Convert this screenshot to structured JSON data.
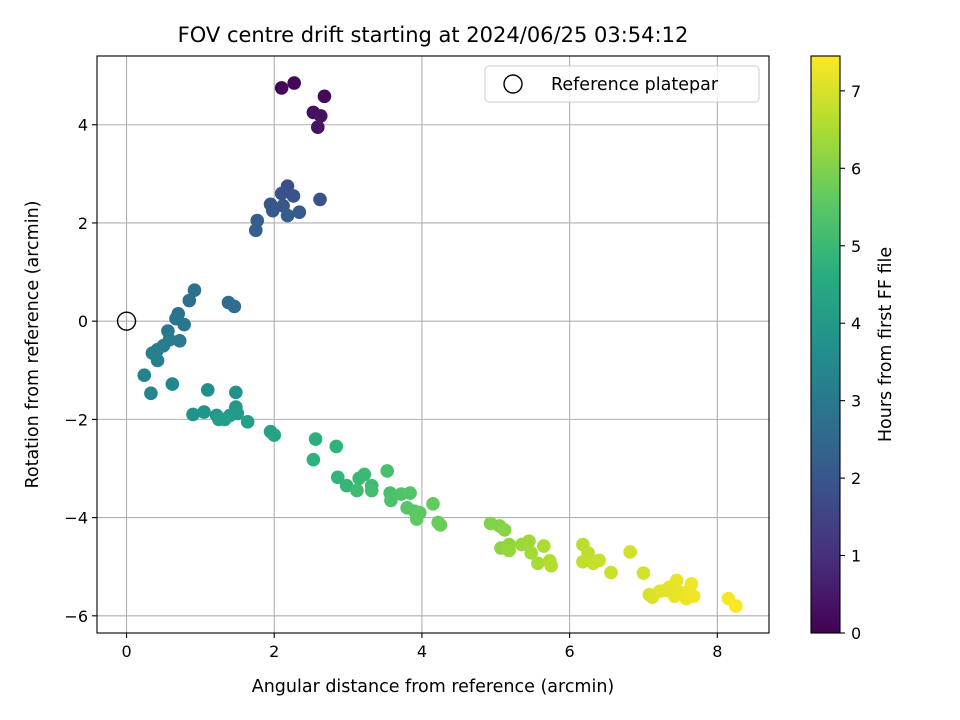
{
  "chart_data": {
    "type": "scatter",
    "title": "FOV centre drift starting at 2024/06/25 03:54:12",
    "xlabel": "Angular distance from reference (arcmin)",
    "ylabel": "Rotation from reference (arcmin)",
    "xlim": [
      -0.4,
      8.7
    ],
    "ylim": [
      -6.35,
      5.4
    ],
    "xticks": [
      0,
      2,
      4,
      6,
      8
    ],
    "yticks": [
      -6,
      -4,
      -2,
      0,
      2,
      4
    ],
    "grid": true,
    "legend": {
      "placement": "top-right",
      "entries": [
        "Reference platepar"
      ]
    },
    "reference_point": {
      "x": 0,
      "y": 0,
      "label": "Reference platepar"
    },
    "colorbar": {
      "label": "Hours from first FF file",
      "range": [
        0,
        7.45
      ],
      "ticks": [
        0,
        1,
        2,
        3,
        4,
        5,
        6,
        7
      ],
      "colormap": "viridis"
    },
    "points": [
      {
        "x": 2.1,
        "y": 4.75,
        "c": 0.05
      },
      {
        "x": 2.27,
        "y": 4.85,
        "c": 0.1
      },
      {
        "x": 2.68,
        "y": 4.58,
        "c": 0.2
      },
      {
        "x": 2.53,
        "y": 4.25,
        "c": 0.3
      },
      {
        "x": 2.63,
        "y": 4.18,
        "c": 0.35
      },
      {
        "x": 2.59,
        "y": 3.95,
        "c": 0.4
      },
      {
        "x": 2.18,
        "y": 2.75,
        "c": 1.75
      },
      {
        "x": 2.1,
        "y": 2.6,
        "c": 1.8
      },
      {
        "x": 2.26,
        "y": 2.55,
        "c": 1.85
      },
      {
        "x": 2.62,
        "y": 2.48,
        "c": 1.9
      },
      {
        "x": 1.95,
        "y": 2.38,
        "c": 1.95
      },
      {
        "x": 2.12,
        "y": 2.35,
        "c": 2.0
      },
      {
        "x": 1.98,
        "y": 2.25,
        "c": 2.05
      },
      {
        "x": 2.34,
        "y": 2.22,
        "c": 2.1
      },
      {
        "x": 2.18,
        "y": 2.15,
        "c": 2.15
      },
      {
        "x": 1.77,
        "y": 2.05,
        "c": 2.2
      },
      {
        "x": 1.75,
        "y": 1.85,
        "c": 2.25
      },
      {
        "x": 1.38,
        "y": 0.38,
        "c": 2.6
      },
      {
        "x": 1.46,
        "y": 0.3,
        "c": 2.62
      },
      {
        "x": 0.92,
        "y": 0.63,
        "c": 2.7
      },
      {
        "x": 0.85,
        "y": 0.42,
        "c": 2.75
      },
      {
        "x": 0.7,
        "y": 0.15,
        "c": 2.8
      },
      {
        "x": 0.67,
        "y": 0.05,
        "c": 2.85
      },
      {
        "x": 0.78,
        "y": -0.07,
        "c": 2.9
      },
      {
        "x": 0.56,
        "y": -0.2,
        "c": 2.95
      },
      {
        "x": 0.72,
        "y": -0.4,
        "c": 3.0
      },
      {
        "x": 0.58,
        "y": -0.38,
        "c": 3.05
      },
      {
        "x": 0.5,
        "y": -0.5,
        "c": 3.1
      },
      {
        "x": 0.42,
        "y": -0.58,
        "c": 3.15
      },
      {
        "x": 0.35,
        "y": -0.65,
        "c": 3.2
      },
      {
        "x": 0.42,
        "y": -0.8,
        "c": 3.25
      },
      {
        "x": 0.24,
        "y": -1.1,
        "c": 3.3
      },
      {
        "x": 0.62,
        "y": -1.28,
        "c": 3.35
      },
      {
        "x": 0.33,
        "y": -1.47,
        "c": 3.4
      },
      {
        "x": 1.1,
        "y": -1.4,
        "c": 3.7
      },
      {
        "x": 1.48,
        "y": -1.45,
        "c": 3.75
      },
      {
        "x": 0.9,
        "y": -1.9,
        "c": 3.8
      },
      {
        "x": 1.05,
        "y": -1.85,
        "c": 3.85
      },
      {
        "x": 1.22,
        "y": -1.92,
        "c": 3.9
      },
      {
        "x": 1.48,
        "y": -1.75,
        "c": 3.95
      },
      {
        "x": 1.4,
        "y": -1.92,
        "c": 4.0
      },
      {
        "x": 1.5,
        "y": -1.88,
        "c": 4.05
      },
      {
        "x": 1.25,
        "y": -2.0,
        "c": 4.1
      },
      {
        "x": 1.33,
        "y": -2.0,
        "c": 4.15
      },
      {
        "x": 1.64,
        "y": -2.05,
        "c": 4.2
      },
      {
        "x": 1.95,
        "y": -2.25,
        "c": 4.25
      },
      {
        "x": 2.0,
        "y": -2.32,
        "c": 4.3
      },
      {
        "x": 2.56,
        "y": -2.4,
        "c": 4.7
      },
      {
        "x": 2.53,
        "y": -2.82,
        "c": 4.75
      },
      {
        "x": 2.84,
        "y": -2.55,
        "c": 4.8
      },
      {
        "x": 2.86,
        "y": -3.18,
        "c": 4.85
      },
      {
        "x": 2.98,
        "y": -3.35,
        "c": 4.9
      },
      {
        "x": 3.15,
        "y": -3.2,
        "c": 4.95
      },
      {
        "x": 3.22,
        "y": -3.12,
        "c": 5.0
      },
      {
        "x": 3.32,
        "y": -3.35,
        "c": 5.05
      },
      {
        "x": 3.12,
        "y": -3.45,
        "c": 5.1
      },
      {
        "x": 3.32,
        "y": -3.45,
        "c": 5.15
      },
      {
        "x": 3.53,
        "y": -3.05,
        "c": 5.2
      },
      {
        "x": 3.57,
        "y": -3.5,
        "c": 5.25
      },
      {
        "x": 3.58,
        "y": -3.65,
        "c": 5.3
      },
      {
        "x": 3.72,
        "y": -3.52,
        "c": 5.35
      },
      {
        "x": 3.84,
        "y": -3.5,
        "c": 5.4
      },
      {
        "x": 3.8,
        "y": -3.8,
        "c": 5.45
      },
      {
        "x": 3.9,
        "y": -3.87,
        "c": 5.5
      },
      {
        "x": 3.97,
        "y": -3.9,
        "c": 5.55
      },
      {
        "x": 3.93,
        "y": -4.03,
        "c": 5.6
      },
      {
        "x": 4.15,
        "y": -3.72,
        "c": 5.65
      },
      {
        "x": 4.22,
        "y": -4.1,
        "c": 5.7
      },
      {
        "x": 4.25,
        "y": -4.15,
        "c": 5.75
      },
      {
        "x": 4.93,
        "y": -4.12,
        "c": 6.0
      },
      {
        "x": 5.05,
        "y": -4.17,
        "c": 6.05
      },
      {
        "x": 5.12,
        "y": -4.25,
        "c": 6.1
      },
      {
        "x": 5.07,
        "y": -4.62,
        "c": 6.15
      },
      {
        "x": 5.18,
        "y": -4.55,
        "c": 6.2
      },
      {
        "x": 5.18,
        "y": -4.67,
        "c": 6.25
      },
      {
        "x": 5.35,
        "y": -4.55,
        "c": 6.3
      },
      {
        "x": 5.45,
        "y": -4.48,
        "c": 6.35
      },
      {
        "x": 5.48,
        "y": -4.72,
        "c": 6.4
      },
      {
        "x": 5.57,
        "y": -4.93,
        "c": 6.45
      },
      {
        "x": 5.65,
        "y": -4.58,
        "c": 6.5
      },
      {
        "x": 5.73,
        "y": -4.88,
        "c": 6.55
      },
      {
        "x": 5.75,
        "y": -4.98,
        "c": 6.6
      },
      {
        "x": 6.18,
        "y": -4.55,
        "c": 6.65
      },
      {
        "x": 6.25,
        "y": -4.72,
        "c": 6.7
      },
      {
        "x": 6.18,
        "y": -4.9,
        "c": 6.75
      },
      {
        "x": 6.32,
        "y": -4.93,
        "c": 6.8
      },
      {
        "x": 6.4,
        "y": -4.87,
        "c": 6.82
      },
      {
        "x": 6.56,
        "y": -5.12,
        "c": 6.85
      },
      {
        "x": 6.82,
        "y": -4.7,
        "c": 6.9
      },
      {
        "x": 7.0,
        "y": -5.13,
        "c": 6.95
      },
      {
        "x": 7.08,
        "y": -5.57,
        "c": 7.0
      },
      {
        "x": 7.12,
        "y": -5.62,
        "c": 7.05
      },
      {
        "x": 7.22,
        "y": -5.5,
        "c": 7.1
      },
      {
        "x": 7.3,
        "y": -5.48,
        "c": 7.12
      },
      {
        "x": 7.35,
        "y": -5.42,
        "c": 7.15
      },
      {
        "x": 7.42,
        "y": -5.6,
        "c": 7.18
      },
      {
        "x": 7.45,
        "y": -5.28,
        "c": 7.2
      },
      {
        "x": 7.5,
        "y": -5.52,
        "c": 7.23
      },
      {
        "x": 7.58,
        "y": -5.65,
        "c": 7.25
      },
      {
        "x": 7.62,
        "y": -5.48,
        "c": 7.28
      },
      {
        "x": 7.65,
        "y": -5.35,
        "c": 7.3
      },
      {
        "x": 7.68,
        "y": -5.6,
        "c": 7.32
      },
      {
        "x": 8.15,
        "y": -5.65,
        "c": 7.38
      },
      {
        "x": 8.25,
        "y": -5.8,
        "c": 7.42
      }
    ]
  }
}
